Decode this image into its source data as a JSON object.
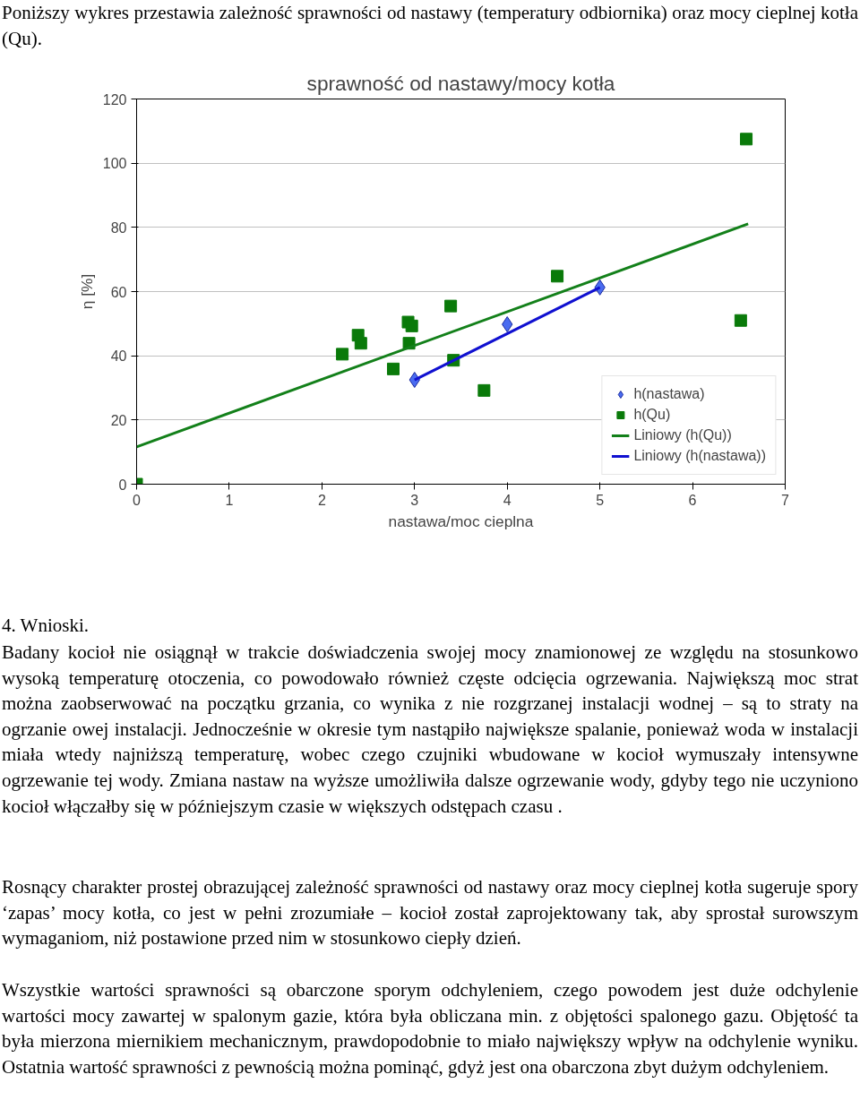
{
  "chart_data": {
    "type": "scatter",
    "title": "sprawność od nastawy/mocy kotła",
    "xlabel": "nastawa/moc cieplna",
    "ylabel": "η [%]",
    "xlim": [
      0,
      7
    ],
    "ylim": [
      0,
      120
    ],
    "xticks": [
      0,
      1,
      2,
      3,
      4,
      5,
      6,
      7
    ],
    "yticks": [
      0,
      20,
      40,
      60,
      80,
      100,
      120
    ],
    "grid": "y",
    "legend": "bottom right",
    "series": [
      {
        "name": "h(nastawa)",
        "marker": "diamond",
        "color": "#4a6cf0",
        "x": [
          3,
          4,
          5
        ],
        "values": [
          32.5,
          49.8,
          61.3
        ]
      },
      {
        "name": "h(Qu)",
        "marker": "square",
        "color": "#0a7a0a",
        "x": [
          0,
          2.22,
          2.39,
          2.42,
          2.77,
          2.93,
          2.97,
          2.94,
          3.39,
          3.42,
          3.75,
          4.54,
          6.52,
          6.58
        ],
        "values": [
          0,
          40.5,
          46.4,
          43.9,
          35.9,
          50.5,
          49.3,
          43.9,
          55.5,
          38.6,
          29.2,
          64.8,
          51.0,
          107.5
        ]
      },
      {
        "name": "Liniowy (h(Qu))",
        "type": "line",
        "color": "#13801a",
        "x": [
          0,
          6.6
        ],
        "values": [
          11.6,
          81.1
        ]
      },
      {
        "name": "Liniowy (h(nastawa))",
        "type": "line",
        "color": "#1010d0",
        "x": [
          3,
          5
        ],
        "values": [
          32.5,
          61.3
        ]
      }
    ],
    "annotations": [
      "Poniższy wykres przestawia zależność sprawności od nastawy (temperatury odbiornika) oraz mocy cieplnej kotła (Qu).",
      "4. Wnioski.",
      "Badany kocioł nie osiągnął w trakcie doświadczenia swojej mocy znamionowej ze względu na stosunkowo wysoką temperaturę otoczenia, co powodowało również częste odcięcia ogrzewania. Największą moc strat można zaobserwować na początku  grzania, co wynika z nie rozgrzanej instalacji wodnej – są to straty na ogrzanie owej instalacji. Jednocześnie w okresie tym nastąpiło największe spalanie, ponieważ woda w instalacji miała wtedy najniższą temperaturę, wobec czego czujniki wbudowane w kocioł wymuszały intensywne ogrzewanie tej wody. Zmiana nastaw na wyższe umożliwiła dalsze ogrzewanie wody, gdyby tego nie uczyniono kocioł włączałby się w późniejszym czasie w większych odstępach czasu .",
      "Rosnący charakter prostej obrazującej zależność sprawności od nastawy oraz mocy cieplnej kotła sugeruje spory ‘zapas’ mocy kotła, co jest w pełni zrozumiałe – kocioł został zaprojektowany tak, aby sprostał surowszym wymaganiom, niż postawione przed nim w stosunkowo ciepły dzień.",
      "Wszystkie wartości sprawności są obarczone sporym odchyleniem, czego powodem jest duże odchylenie wartości mocy zawartej w spalonym gazie, która była obliczana min. z objętości spalonego gazu. Objętość ta była mierzona miernikiem mechanicznym, prawdopodobnie to miało największy wpływ na odchylenie wyniku. Ostatnia wartość sprawności z pewnością można pominąć, gdyż jest ona obarczona zbyt dużym odchyleniem."
    ]
  }
}
